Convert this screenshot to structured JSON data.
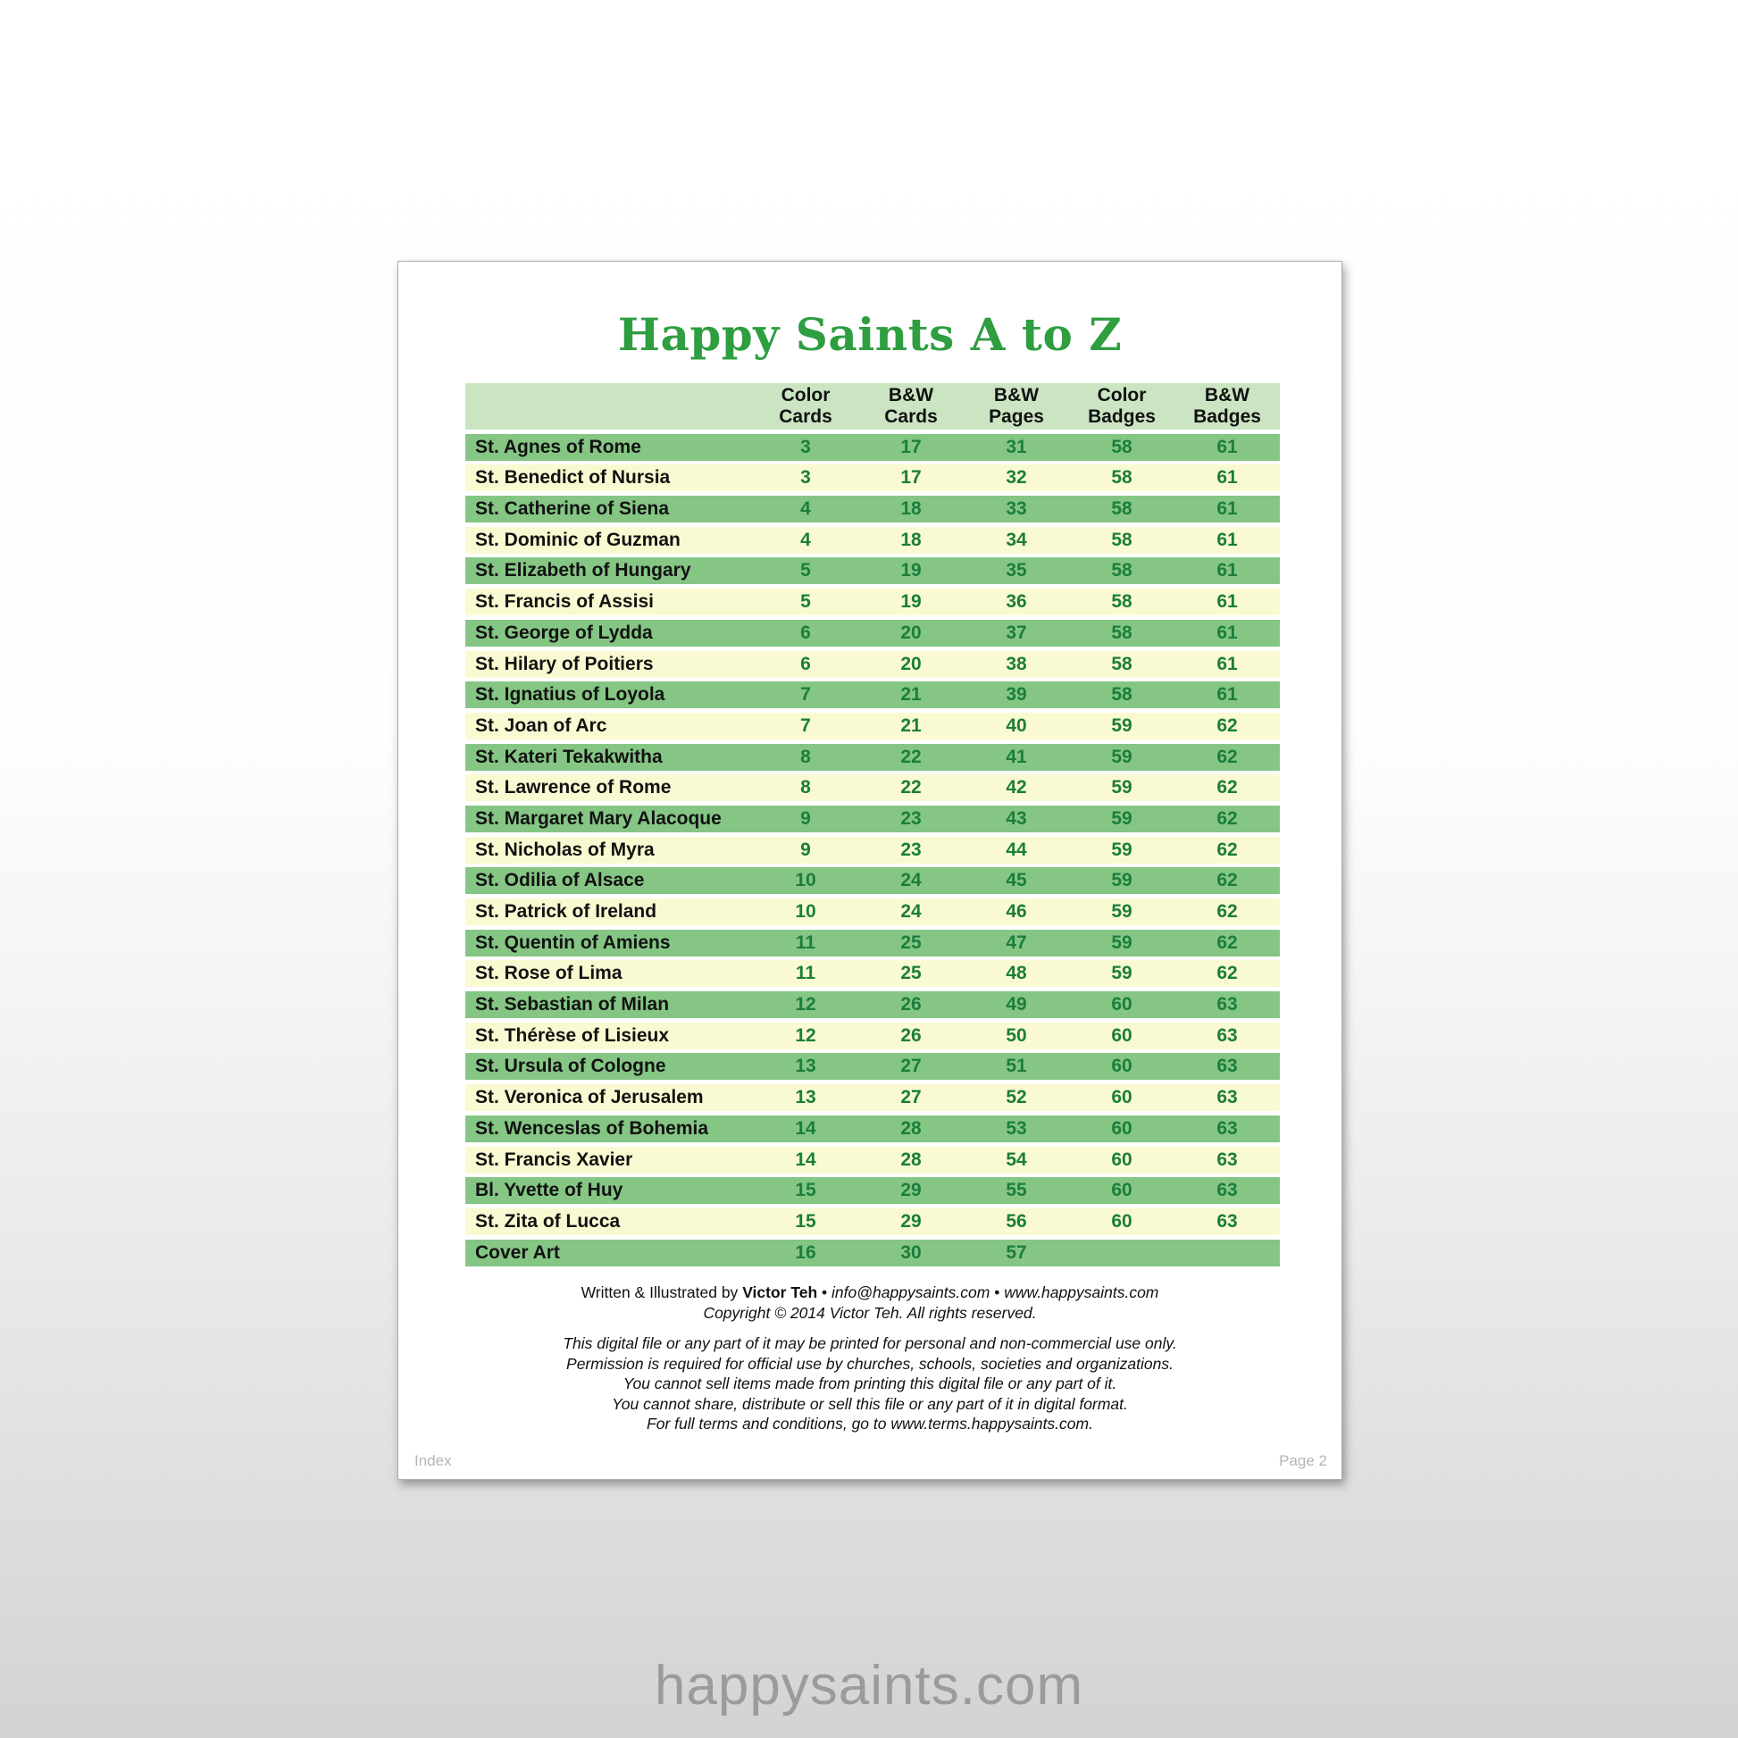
{
  "page": {
    "title": "Happy Saints A to Z",
    "footer_left": "Index",
    "footer_right": "Page 2"
  },
  "table": {
    "columns": [
      [
        "Color",
        "Cards"
      ],
      [
        "B&W",
        "Cards"
      ],
      [
        "B&W",
        "Pages"
      ],
      [
        "Color",
        "Badges"
      ],
      [
        "B&W",
        "Badges"
      ]
    ],
    "rows": [
      {
        "name": "St. Agnes of Rome",
        "values": [
          "3",
          "17",
          "31",
          "58",
          "61"
        ]
      },
      {
        "name": "St. Benedict of Nursia",
        "values": [
          "3",
          "17",
          "32",
          "58",
          "61"
        ]
      },
      {
        "name": "St. Catherine of Siena",
        "values": [
          "4",
          "18",
          "33",
          "58",
          "61"
        ]
      },
      {
        "name": "St. Dominic of Guzman",
        "values": [
          "4",
          "18",
          "34",
          "58",
          "61"
        ]
      },
      {
        "name": "St. Elizabeth of Hungary",
        "values": [
          "5",
          "19",
          "35",
          "58",
          "61"
        ]
      },
      {
        "name": "St. Francis of Assisi",
        "values": [
          "5",
          "19",
          "36",
          "58",
          "61"
        ]
      },
      {
        "name": "St. George of Lydda",
        "values": [
          "6",
          "20",
          "37",
          "58",
          "61"
        ]
      },
      {
        "name": "St. Hilary of Poitiers",
        "values": [
          "6",
          "20",
          "38",
          "58",
          "61"
        ]
      },
      {
        "name": "St. Ignatius of Loyola",
        "values": [
          "7",
          "21",
          "39",
          "58",
          "61"
        ]
      },
      {
        "name": "St. Joan of Arc",
        "values": [
          "7",
          "21",
          "40",
          "59",
          "62"
        ]
      },
      {
        "name": "St. Kateri Tekakwitha",
        "values": [
          "8",
          "22",
          "41",
          "59",
          "62"
        ]
      },
      {
        "name": "St. Lawrence of Rome",
        "values": [
          "8",
          "22",
          "42",
          "59",
          "62"
        ]
      },
      {
        "name": "St. Margaret Mary Alacoque",
        "values": [
          "9",
          "23",
          "43",
          "59",
          "62"
        ]
      },
      {
        "name": "St. Nicholas of Myra",
        "values": [
          "9",
          "23",
          "44",
          "59",
          "62"
        ]
      },
      {
        "name": "St. Odilia of Alsace",
        "values": [
          "10",
          "24",
          "45",
          "59",
          "62"
        ]
      },
      {
        "name": "St. Patrick of Ireland",
        "values": [
          "10",
          "24",
          "46",
          "59",
          "62"
        ]
      },
      {
        "name": "St. Quentin of Amiens",
        "values": [
          "11",
          "25",
          "47",
          "59",
          "62"
        ]
      },
      {
        "name": "St. Rose of Lima",
        "values": [
          "11",
          "25",
          "48",
          "59",
          "62"
        ]
      },
      {
        "name": "St. Sebastian of Milan",
        "values": [
          "12",
          "26",
          "49",
          "60",
          "63"
        ]
      },
      {
        "name": "St. Thérèse of Lisieux",
        "values": [
          "12",
          "26",
          "50",
          "60",
          "63"
        ]
      },
      {
        "name": "St. Ursula of Cologne",
        "values": [
          "13",
          "27",
          "51",
          "60",
          "63"
        ]
      },
      {
        "name": "St. Veronica of Jerusalem",
        "values": [
          "13",
          "27",
          "52",
          "60",
          "63"
        ]
      },
      {
        "name": "St. Wenceslas of Bohemia",
        "values": [
          "14",
          "28",
          "53",
          "60",
          "63"
        ]
      },
      {
        "name": "St. Francis Xavier",
        "values": [
          "14",
          "28",
          "54",
          "60",
          "63"
        ]
      },
      {
        "name": "Bl. Yvette of Huy",
        "values": [
          "15",
          "29",
          "55",
          "60",
          "63"
        ]
      },
      {
        "name": "St. Zita of Lucca",
        "values": [
          "15",
          "29",
          "56",
          "60",
          "63"
        ]
      },
      {
        "name": "Cover Art",
        "values": [
          "16",
          "30",
          "57",
          "",
          ""
        ]
      }
    ]
  },
  "credits": {
    "written_by": "Written & Illustrated by",
    "author": "Victor Teh",
    "sep1": "•",
    "email": "info@happysaints.com",
    "sep2": "•",
    "website": "www.happysaints.com",
    "copyright": "Copyright © 2014 Victor Teh. All rights reserved."
  },
  "terms": {
    "lines": [
      "This digital file or any part of it may be printed for personal and non-commercial use only.",
      "Permission is required for official use by churches, schools, societies and organizations.",
      "You cannot sell items made from printing this digital file or any part of it.",
      "You cannot share, distribute or sell this file or any part of it in digital format.",
      "For full terms and conditions, go to www.terms.happysaints.com."
    ]
  },
  "watermark": "happysaints.com",
  "colors": {
    "title_green": "#2e9e41",
    "header_row_green": "#cbe5c2",
    "row_green": "#85c684",
    "row_yellow": "#fafad2",
    "number_green": "#1b7e3c",
    "footer_gray": "#b5b5b5",
    "watermark_gray": "#9b9b9b"
  }
}
